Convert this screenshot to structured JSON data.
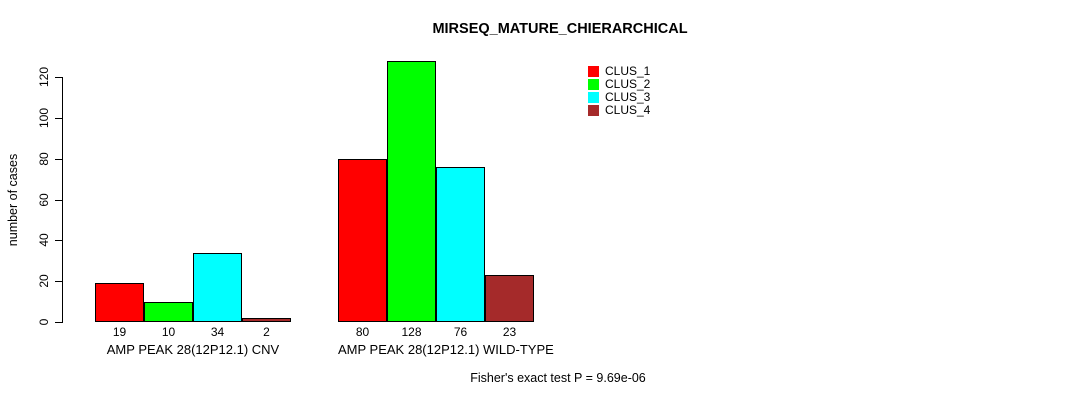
{
  "chart_data": {
    "type": "bar",
    "title": "MIRSEQ_MATURE_CHIERARCHICAL",
    "xlabel": "",
    "ylabel": "number of cases",
    "ylim": [
      0,
      120
    ],
    "yticks": [
      0,
      20,
      40,
      60,
      80,
      100,
      120
    ],
    "grid": false,
    "legend_position": "top-right",
    "categories": [
      "AMP PEAK 28(12P12.1) CNV",
      "AMP PEAK 28(12P12.1) WILD-TYPE"
    ],
    "series": [
      {
        "name": "CLUS_1",
        "color": "#ff0000",
        "values": [
          19,
          80
        ]
      },
      {
        "name": "CLUS_2",
        "color": "#00ff00",
        "values": [
          10,
          128
        ]
      },
      {
        "name": "CLUS_3",
        "color": "#00ffff",
        "values": [
          34,
          76
        ]
      },
      {
        "name": "CLUS_4",
        "color": "#a52a2a",
        "values": [
          2,
          23
        ]
      }
    ],
    "bar_value_labels": [
      "19",
      "10",
      "34",
      "2",
      "80",
      "128",
      "76",
      "23"
    ],
    "annotation": "Fisher's exact test P = 9.69e-06"
  }
}
